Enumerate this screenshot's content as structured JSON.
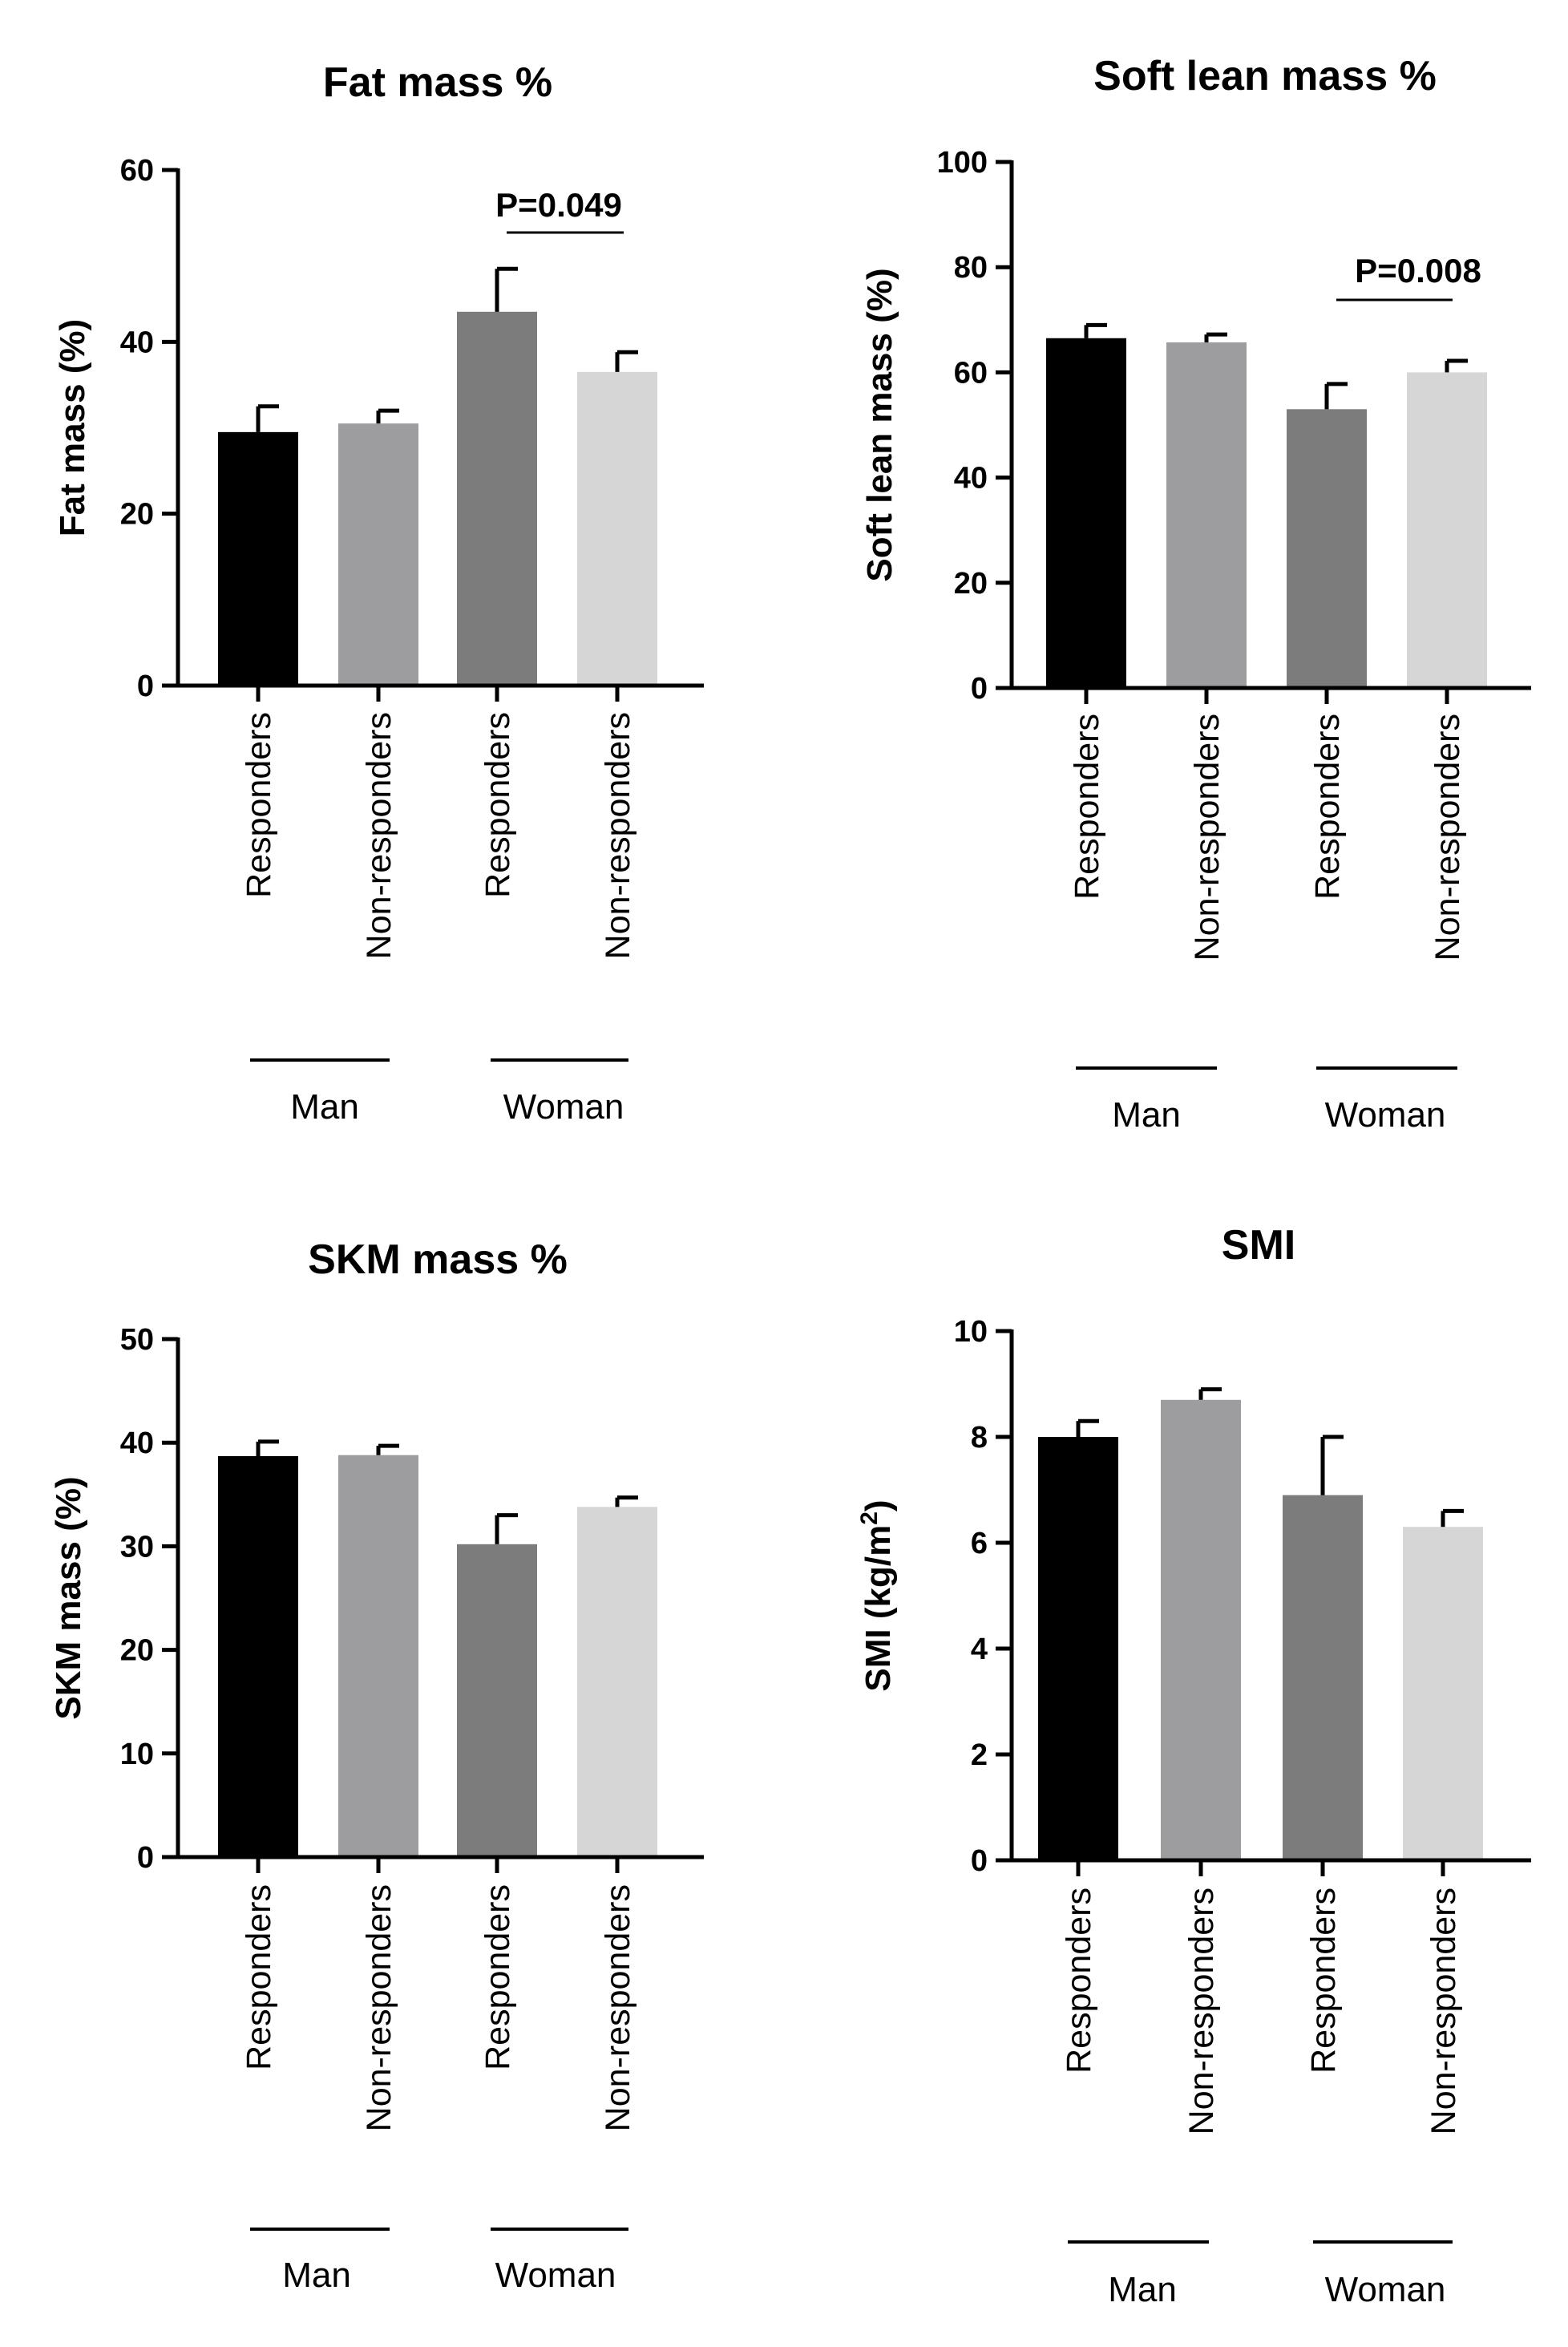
{
  "chart_data": [
    {
      "type": "bar",
      "title": "Fat mass %",
      "ylabel": "Fat mass (%)",
      "ylim": [
        0,
        60
      ],
      "yticks": [
        "0",
        "20",
        "40",
        "60"
      ],
      "categories": [
        "Responders",
        "Non-responders",
        "Responders",
        "Non-responders"
      ],
      "groups": [
        "Man",
        "Woman"
      ],
      "values": [
        29.5,
        30.5,
        43.5,
        36.5
      ],
      "errors": [
        3.0,
        1.5,
        5.0,
        2.3
      ],
      "colors": [
        "#000000",
        "#9d9c9f",
        "#7c7c7c",
        "#d6d6d6"
      ],
      "annotation": {
        "text": "P=0.049",
        "between": [
          2,
          3
        ]
      }
    },
    {
      "type": "bar",
      "title": "Soft lean mass %",
      "ylabel": "Soft lean mass (%)",
      "ylim": [
        0,
        100
      ],
      "yticks": [
        "0",
        "20",
        "40",
        "60",
        "80",
        "100"
      ],
      "categories": [
        "Responders",
        "Non-responders",
        "Responders",
        "Non-responders"
      ],
      "groups": [
        "Man",
        "Woman"
      ],
      "values": [
        66.5,
        65.7,
        53.0,
        60.0
      ],
      "errors": [
        2.5,
        1.5,
        4.8,
        2.2
      ],
      "colors": [
        "#000000",
        "#9d9c9f",
        "#7c7c7c",
        "#d6d6d6"
      ],
      "annotation": {
        "text": "P=0.008",
        "between": [
          2,
          3
        ]
      }
    },
    {
      "type": "bar",
      "title": "SKM mass %",
      "ylabel": "SKM mass (%)",
      "ylim": [
        0,
        50
      ],
      "yticks": [
        "0",
        "10",
        "20",
        "30",
        "40",
        "50"
      ],
      "categories": [
        "Responders",
        "Non-responders",
        "Responders",
        "Non-responders"
      ],
      "groups": [
        "Man",
        "Woman"
      ],
      "values": [
        38.7,
        38.8,
        30.2,
        33.8
      ],
      "errors": [
        1.4,
        0.9,
        2.8,
        0.9
      ],
      "colors": [
        "#000000",
        "#9d9c9f",
        "#7c7c7c",
        "#d6d6d6"
      ]
    },
    {
      "type": "bar",
      "title": "SMI",
      "ylabel": "SMI (kg/m²)",
      "ylim": [
        0,
        10
      ],
      "yticks": [
        "0",
        "2",
        "4",
        "6",
        "8",
        "10"
      ],
      "categories": [
        "Responders",
        "Non-responders",
        "Responders",
        "Non-responders"
      ],
      "groups": [
        "Man",
        "Woman"
      ],
      "values": [
        8.0,
        8.7,
        6.9,
        6.3
      ],
      "errors": [
        0.3,
        0.2,
        1.1,
        0.3
      ],
      "colors": [
        "#000000",
        "#9d9c9f",
        "#7c7c7c",
        "#d6d6d6"
      ]
    }
  ]
}
